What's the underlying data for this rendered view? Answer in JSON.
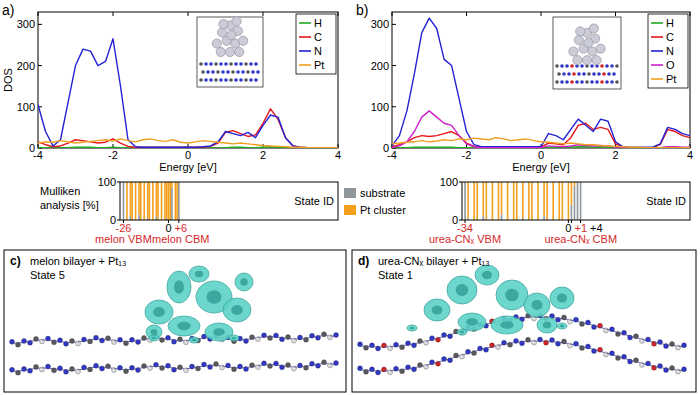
{
  "chart_data": [
    {
      "type": "line",
      "label": "a)",
      "x": [
        -4,
        -3.8,
        -3.6,
        -3.4,
        -3.2,
        -3,
        -2.8,
        -2.6,
        -2.4,
        -2.2,
        -2,
        -1.8,
        -1.6,
        -1.4,
        -1.2,
        -1,
        -0.8,
        -0.6,
        -0.4,
        -0.2,
        0,
        0.2,
        0.4,
        0.6,
        0.8,
        1,
        1.2,
        1.4,
        1.6,
        1.8,
        2,
        2.2,
        2.4,
        2.6,
        2.8,
        3,
        3.2,
        3.4,
        3.6,
        3.8,
        4
      ],
      "series": [
        {
          "name": "H",
          "color": "#22aa22",
          "values": [
            1,
            1,
            1,
            1,
            1,
            2,
            2,
            2,
            1,
            1,
            2,
            1,
            0,
            0,
            0,
            0,
            0,
            0,
            0,
            0,
            0,
            0,
            0,
            0,
            0,
            1,
            2,
            2,
            1,
            1,
            2,
            3,
            2,
            1,
            0,
            0,
            0,
            0,
            0,
            0,
            0
          ]
        },
        {
          "name": "C",
          "color": "#e8141b",
          "values": [
            15,
            8,
            3,
            5,
            12,
            20,
            18,
            15,
            12,
            14,
            22,
            12,
            4,
            2,
            2,
            2,
            2,
            2,
            2,
            2,
            2,
            2,
            2,
            4,
            12,
            38,
            42,
            35,
            28,
            32,
            60,
            95,
            70,
            25,
            5,
            2,
            1,
            1,
            1,
            1,
            1
          ]
        },
        {
          "name": "N",
          "color": "#2323d6",
          "values": [
            105,
            40,
            5,
            20,
            110,
            200,
            240,
            235,
            200,
            210,
            265,
            150,
            20,
            3,
            2,
            2,
            2,
            2,
            2,
            2,
            2,
            2,
            3,
            5,
            15,
            40,
            35,
            30,
            38,
            25,
            55,
            80,
            75,
            25,
            5,
            2,
            1,
            1,
            1,
            1,
            1
          ]
        },
        {
          "name": "Pt",
          "color": "#f0a020",
          "values": [
            12,
            15,
            14,
            18,
            15,
            12,
            14,
            16,
            18,
            20,
            17,
            22,
            18,
            15,
            20,
            22,
            18,
            16,
            20,
            14,
            12,
            15,
            18,
            16,
            14,
            12,
            10,
            12,
            10,
            8,
            6,
            5,
            4,
            3,
            2,
            2,
            1,
            1,
            1,
            1,
            1
          ]
        }
      ],
      "xlim": [
        -4,
        4
      ],
      "xticks": [
        -4,
        -2,
        0,
        2,
        4
      ],
      "ylim": [
        0,
        330
      ],
      "yticks": [
        0,
        100,
        200,
        300
      ],
      "x_label": "Energy [eV]",
      "y_label": "DOS",
      "legend": "top-right"
    },
    {
      "type": "bar",
      "stacked": true,
      "x": [
        -26,
        -24,
        -22,
        -21,
        -19,
        -17,
        -16,
        -14,
        -12,
        -11,
        -9,
        -7,
        -6,
        -4,
        -2,
        -1,
        0,
        1,
        2,
        4,
        5,
        6
      ],
      "series": [
        {
          "name": "substrate",
          "color": "#8f979b",
          "values": [
            100,
            0,
            10,
            0,
            0,
            15,
            0,
            0,
            5,
            0,
            0,
            10,
            0,
            0,
            0,
            5,
            0,
            0,
            85,
            0,
            0,
            100
          ]
        },
        {
          "name": "Pt cluster",
          "color": "#f5a01a",
          "values": [
            0,
            100,
            90,
            100,
            100,
            85,
            100,
            100,
            95,
            100,
            100,
            90,
            100,
            100,
            100,
            95,
            100,
            100,
            15,
            100,
            100,
            0
          ]
        }
      ],
      "xlim": [
        -28,
        98
      ],
      "xticks": [
        -26,
        0,
        {
          "value": 6,
          "label": "+6"
        }
      ],
      "ylim": [
        0,
        100
      ],
      "yticks": [
        0,
        100
      ],
      "x_label": "State ID",
      "y_label": "Mulliken analysis [%]",
      "legend": "right",
      "annotations": [
        {
          "x": -26,
          "text": "melon VBM",
          "color": "#d42a2a"
        },
        {
          "x": 6,
          "text": "melon CBM",
          "color": "#d42a2a"
        }
      ]
    },
    {
      "type": "line",
      "label": "b)",
      "x": [
        -4,
        -3.8,
        -3.6,
        -3.4,
        -3.2,
        -3,
        -2.8,
        -2.6,
        -2.4,
        -2.2,
        -2,
        -1.8,
        -1.6,
        -1.4,
        -1.2,
        -1,
        -0.8,
        -0.6,
        -0.4,
        -0.2,
        0,
        0.2,
        0.4,
        0.6,
        0.8,
        1,
        1.2,
        1.4,
        1.6,
        1.8,
        2,
        2.2,
        2.4,
        2.6,
        2.8,
        3,
        3.2,
        3.4,
        3.6,
        3.8,
        4
      ],
      "series": [
        {
          "name": "H",
          "color": "#22aa22",
          "values": [
            0,
            1,
            1,
            2,
            2,
            2,
            2,
            2,
            2,
            1,
            1,
            0,
            0,
            0,
            0,
            0,
            0,
            0,
            0,
            0,
            0,
            1,
            1,
            1,
            2,
            3,
            3,
            2,
            3,
            2,
            1,
            0,
            0,
            0,
            0,
            0,
            1,
            2,
            2,
            1,
            1
          ]
        },
        {
          "name": "C",
          "color": "#e8141b",
          "values": [
            3,
            8,
            15,
            25,
            30,
            28,
            30,
            35,
            40,
            30,
            12,
            4,
            2,
            2,
            2,
            2,
            2,
            2,
            2,
            2,
            2,
            12,
            10,
            8,
            25,
            55,
            60,
            45,
            50,
            45,
            10,
            2,
            1,
            1,
            1,
            1,
            8,
            45,
            40,
            30,
            25
          ]
        },
        {
          "name": "N",
          "color": "#2323d6",
          "values": [
            5,
            30,
            90,
            180,
            280,
            315,
            290,
            215,
            200,
            120,
            40,
            8,
            3,
            3,
            3,
            3,
            3,
            3,
            3,
            3,
            3,
            35,
            30,
            20,
            45,
            70,
            55,
            40,
            70,
            65,
            15,
            3,
            2,
            2,
            2,
            2,
            10,
            50,
            45,
            35,
            30
          ]
        },
        {
          "name": "O",
          "color": "#cc22cc",
          "values": [
            1,
            5,
            15,
            40,
            75,
            90,
            75,
            60,
            55,
            30,
            10,
            3,
            1,
            1,
            1,
            1,
            1,
            1,
            1,
            1,
            1,
            5,
            4,
            3,
            5,
            8,
            6,
            5,
            6,
            5,
            2,
            1,
            0,
            0,
            0,
            0,
            1,
            3,
            3,
            2,
            2
          ]
        },
        {
          "name": "Pt",
          "color": "#f0a020",
          "values": [
            10,
            12,
            14,
            15,
            18,
            15,
            17,
            20,
            18,
            22,
            20,
            24,
            22,
            20,
            25,
            22,
            18,
            20,
            22,
            18,
            15,
            14,
            12,
            10,
            12,
            10,
            8,
            8,
            6,
            5,
            4,
            3,
            2,
            2,
            1,
            1,
            1,
            1,
            1,
            1,
            1
          ]
        }
      ],
      "xlim": [
        -4,
        4
      ],
      "xticks": [
        -4,
        -2,
        0,
        2,
        4
      ],
      "ylim": [
        0,
        330
      ],
      "yticks": [
        0,
        100,
        200,
        300
      ],
      "x_label": "Energy [eV]",
      "legend": "top-right"
    },
    {
      "type": "bar",
      "stacked": true,
      "x": [
        -34,
        -33,
        -31,
        -30,
        -28,
        -27,
        -25,
        -23,
        -22,
        -20,
        -18,
        -17,
        -15,
        -13,
        -12,
        -10,
        -8,
        -7,
        -5,
        -3,
        -2,
        0,
        1,
        2,
        3,
        4
      ],
      "series": [
        {
          "color": "#8f979b",
          "values": [
            100,
            5,
            0,
            0,
            10,
            0,
            0,
            0,
            15,
            0,
            0,
            0,
            5,
            0,
            0,
            0,
            10,
            0,
            0,
            0,
            0,
            0,
            40,
            90,
            100,
            100
          ]
        },
        {
          "color": "#f5a01a",
          "values": [
            0,
            95,
            100,
            100,
            90,
            100,
            100,
            100,
            85,
            100,
            100,
            100,
            95,
            100,
            100,
            100,
            90,
            100,
            100,
            100,
            100,
            100,
            60,
            10,
            0,
            0
          ]
        }
      ],
      "xlim": [
        -35,
        40
      ],
      "xticks": [
        -34,
        0,
        {
          "value": 1,
          "label": "+1"
        },
        {
          "value": 4,
          "label": "+4"
        }
      ],
      "ylim": [
        0,
        100
      ],
      "yticks": [
        0,
        100
      ],
      "x_label": "State ID",
      "annotations": [
        {
          "x": -34,
          "text": "urea-CNₓ VBM",
          "color": "#d42a2a"
        },
        {
          "x": 1,
          "text": "urea-CNₓ CBM",
          "color": "#d42a2a"
        }
      ]
    }
  ],
  "images": [
    {
      "label": "c)",
      "title": "melon bilayer + Pt₁₃",
      "caption": "State 5"
    },
    {
      "label": "d)",
      "title": "urea-CNₓ bilayer + Pt₁₃",
      "caption": "State 1"
    }
  ]
}
